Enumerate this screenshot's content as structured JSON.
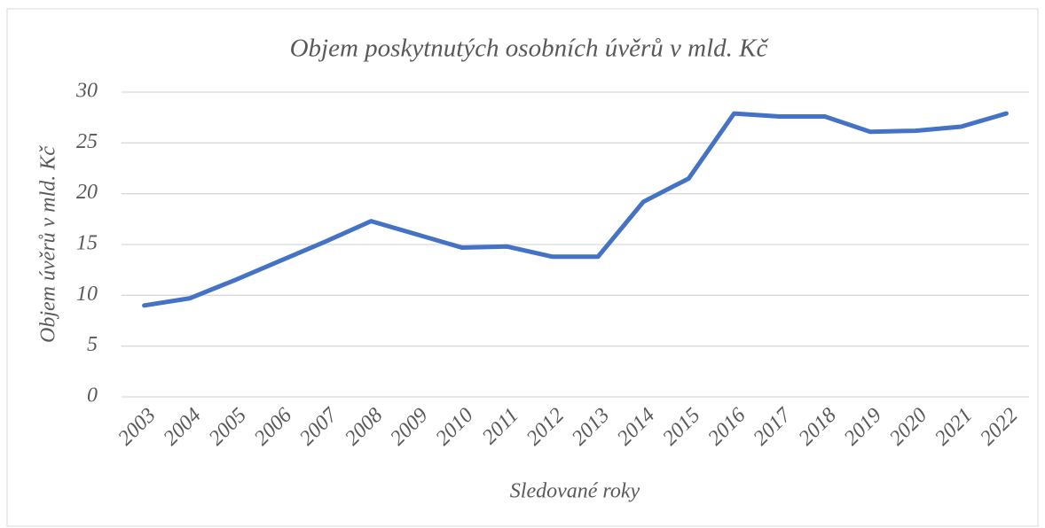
{
  "chart_data": {
    "type": "line",
    "title": "Objem poskytnutých osobních úvěrů v mld. Kč",
    "x_label": "Sledované roky",
    "y_label": "Objem úvěrů v mld. Kč",
    "categories": [
      "2003",
      "2004",
      "2005",
      "2006",
      "2007",
      "2008",
      "2009",
      "2010",
      "2011",
      "2012",
      "2013",
      "2014",
      "2015",
      "2016",
      "2017",
      "2018",
      "2019",
      "2020",
      "2021",
      "2022"
    ],
    "values": [
      9.0,
      9.7,
      11.5,
      13.4,
      15.3,
      17.3,
      16.0,
      14.7,
      14.8,
      13.8,
      13.8,
      19.2,
      21.5,
      27.9,
      27.6,
      27.6,
      26.1,
      26.2,
      26.6,
      27.9
    ],
    "color": "#4472c4",
    "ylim": [
      0,
      30
    ],
    "yticks": [
      0,
      5,
      10,
      15,
      20,
      25,
      30
    ],
    "grid": true
  }
}
